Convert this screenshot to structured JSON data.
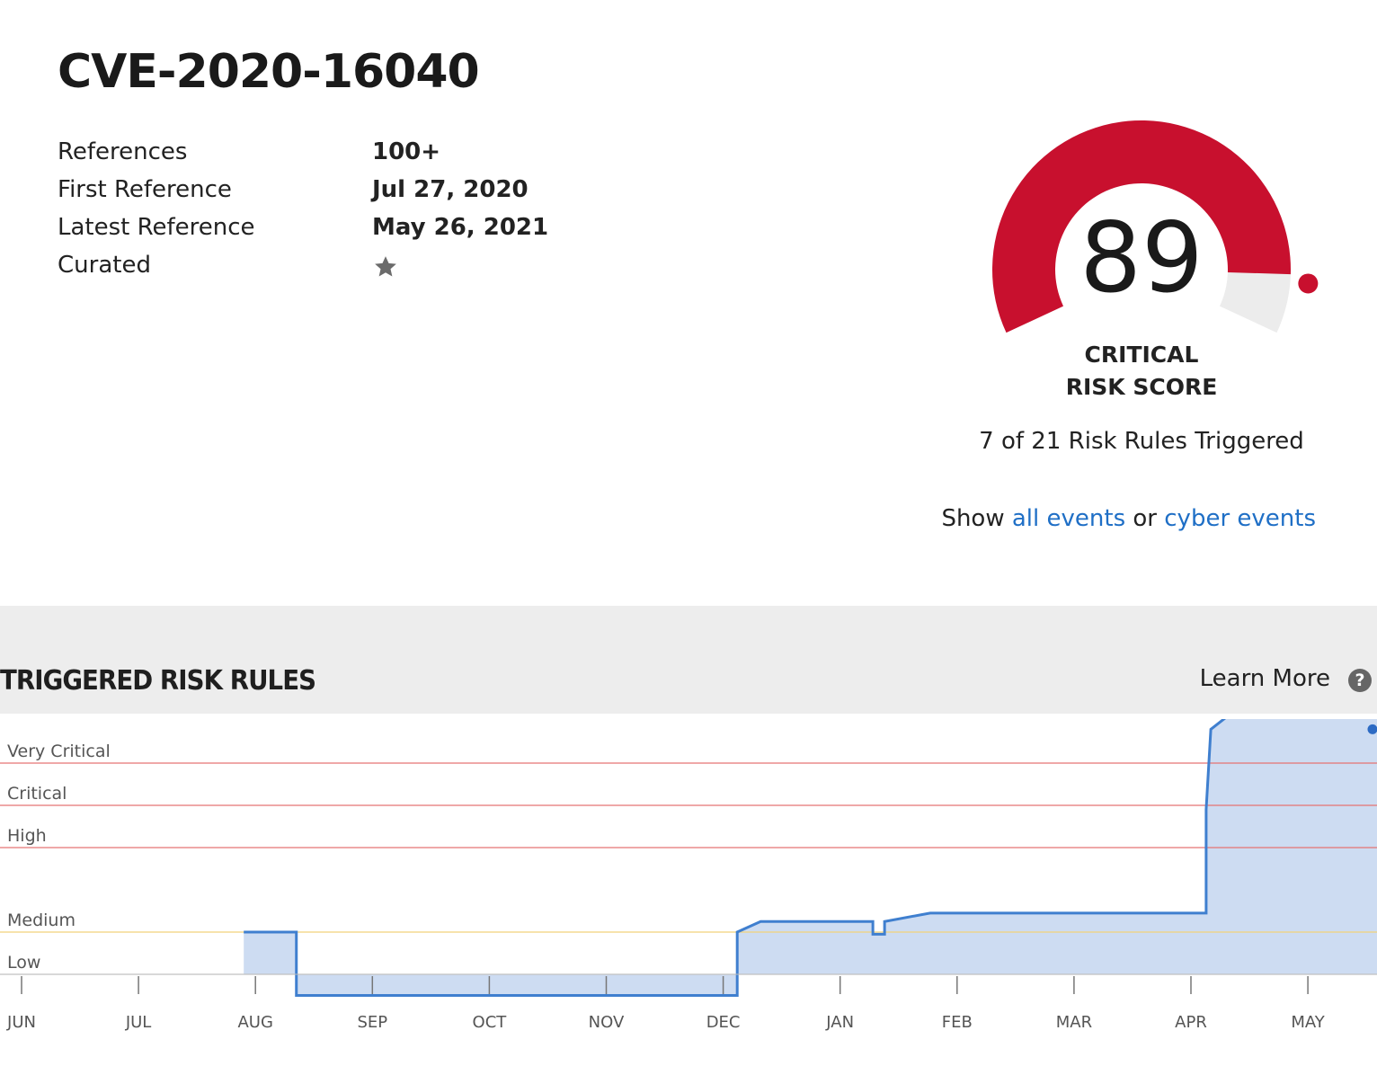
{
  "header": {
    "title": "CVE-2020-16040"
  },
  "meta": [
    {
      "label": "References",
      "value": "100+"
    },
    {
      "label": "First Reference",
      "value": "Jul 27, 2020"
    },
    {
      "label": "Latest Reference",
      "value": "May 26, 2021"
    },
    {
      "label": "Curated",
      "icon": "star-icon"
    }
  ],
  "risk": {
    "score": "89",
    "score_value": 89,
    "score_max": 99,
    "label_line1": "CRITICAL",
    "label_line2": "RISK SCORE",
    "rules_triggered": "7 of 21 Risk Rules Triggered",
    "color": "#c8102e"
  },
  "links": {
    "show": "Show",
    "all_events": "all events",
    "or": "or",
    "cyber_events": "cyber events"
  },
  "section": {
    "title": "TRIGGERED RISK RULES",
    "learn_more": "Learn More",
    "help_icon": "question-icon"
  },
  "chart_data": {
    "type": "area",
    "step": true,
    "levels": [
      {
        "name": "Very Critical",
        "value": 5,
        "color": "#e57373"
      },
      {
        "name": "Critical",
        "value": 4,
        "color": "#e57373"
      },
      {
        "name": "High",
        "value": 3,
        "color": "#e57373"
      },
      {
        "name": "Medium",
        "value": 1,
        "color": "#f2d27a"
      },
      {
        "name": "Low",
        "value": 0,
        "color": "#d0d0d0"
      }
    ],
    "x_ticks": [
      "JUN",
      "JUL",
      "AUG",
      "SEP",
      "OCT",
      "NOV",
      "DEC",
      "JAN",
      "FEB",
      "MAR",
      "APR",
      "MAY"
    ],
    "series": [
      {
        "x": [
          1.9,
          2.35,
          2.35,
          6.12,
          6.12,
          6.32,
          7.28,
          7.28,
          7.38,
          7.38,
          7.77,
          10.13,
          10.13,
          10.17,
          10.63,
          11.68,
          11.68,
          11.8
        ],
        "y": [
          1,
          1,
          -0.5,
          -0.5,
          1,
          1.25,
          1.25,
          0.95,
          0.95,
          1.25,
          1.45,
          1.45,
          3.9,
          5.8,
          6.8,
          6.8,
          5.8,
          5.8
        ]
      }
    ]
  }
}
